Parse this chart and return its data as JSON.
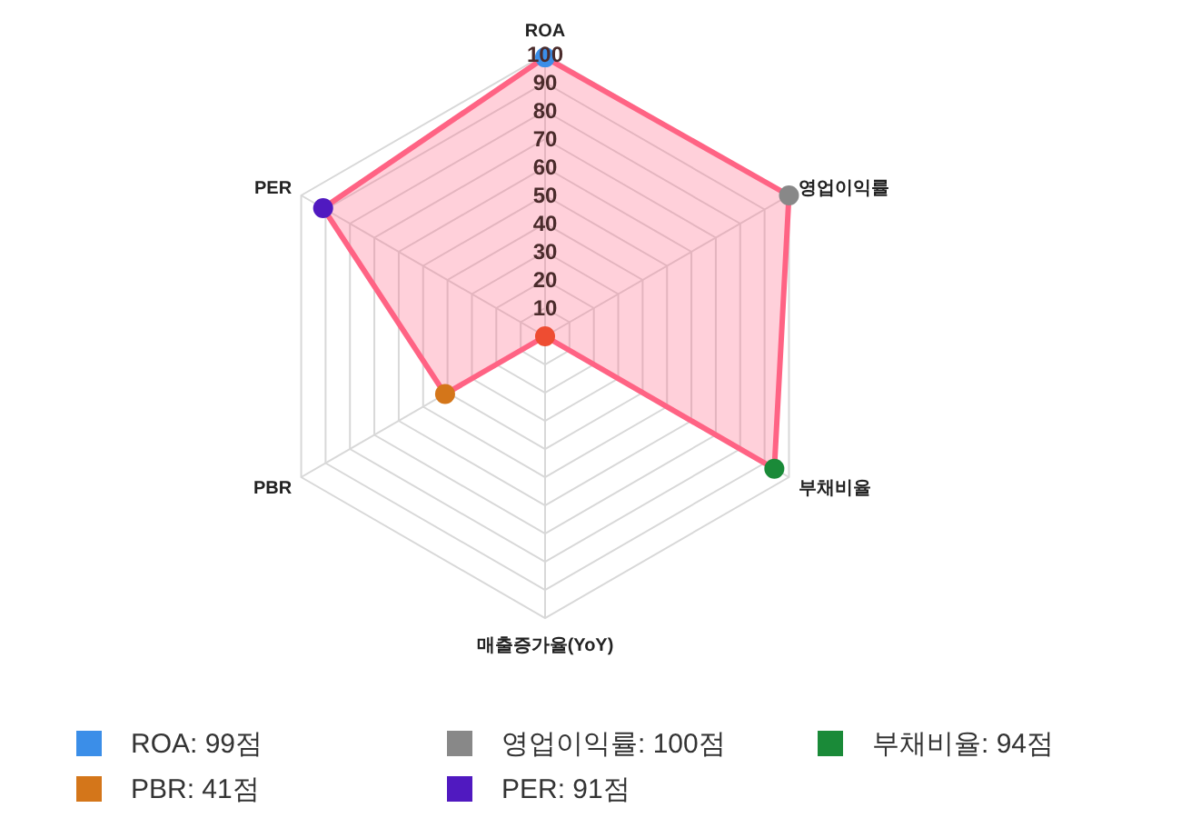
{
  "chart_data": {
    "type": "radar",
    "categories": [
      "ROA",
      "영업이익률",
      "부채비율",
      "매출증가율(YoY)",
      "PBR",
      "PER"
    ],
    "series": [
      {
        "color": "#ff6384",
        "values": [
          99,
          100,
          94,
          0,
          41,
          91
        ],
        "colors": [
          "#3b8ee8",
          "#888888",
          "#1a8a38",
          "#ee4d32",
          "#d4761a",
          "#5019c0"
        ]
      }
    ],
    "annotations": [
      "ROA: 99점",
      "영업이익률: 100점",
      "부채비율: 94점",
      "PBR: 41점",
      "PER: 91점"
    ],
    "ylim": [
      0,
      100
    ],
    "yticks": [
      10,
      20,
      30,
      40,
      50,
      60,
      70,
      80,
      90,
      100
    ],
    "grid": true,
    "marker": "circle"
  }
}
